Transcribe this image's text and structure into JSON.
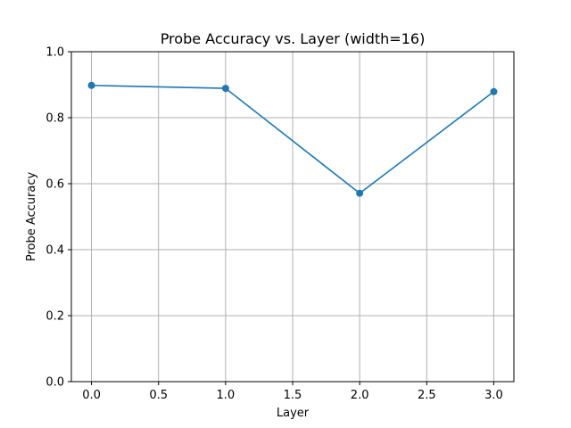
{
  "chart_data": {
    "type": "line",
    "title": "Probe Accuracy vs. Layer (width=16)",
    "xlabel": "Layer",
    "ylabel": "Probe Accuracy",
    "xlim": [
      -0.15,
      3.15
    ],
    "ylim": [
      0.0,
      1.0
    ],
    "xticks": [
      0.0,
      0.5,
      1.0,
      1.5,
      2.0,
      2.5,
      3.0
    ],
    "xtick_labels": [
      "0.0",
      "0.5",
      "1.0",
      "1.5",
      "2.0",
      "2.5",
      "3.0"
    ],
    "yticks": [
      0.0,
      0.2,
      0.4,
      0.6,
      0.8,
      1.0
    ],
    "ytick_labels": [
      "0.0",
      "0.2",
      "0.4",
      "0.6",
      "0.8",
      "1.0"
    ],
    "grid": true,
    "series": [
      {
        "x": [
          0,
          1,
          2,
          3
        ],
        "y": [
          0.898,
          0.889,
          0.571,
          0.879
        ],
        "color": "#1f77b4",
        "marker": "circle"
      }
    ]
  }
}
